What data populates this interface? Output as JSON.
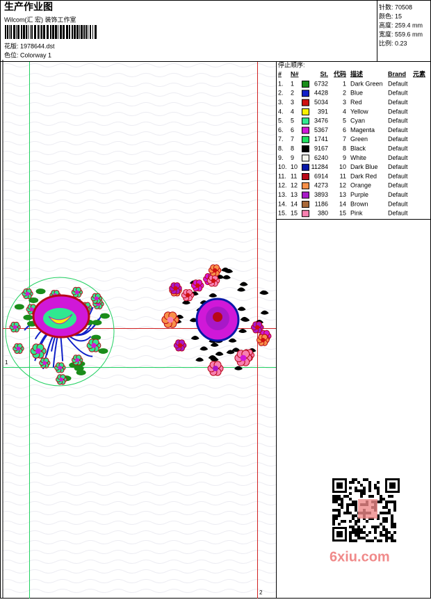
{
  "header": {
    "title": "生产作业图",
    "studio": "Wilcom(汇 宏) 装饰工作室",
    "design": "花版: 1978644.dst",
    "colorway": "色位: Colorway 1"
  },
  "info": {
    "stitches": "针数: 70508",
    "colors": "颜色: 15",
    "height": "高度: 259.4 mm",
    "width": "宽度: 559.6 mm",
    "scale": "比例: 0.23"
  },
  "stop_sequence": {
    "title": "停止顺序:",
    "columns": [
      "#",
      "N#",
      "St.",
      "代码",
      "描述",
      "Brand",
      "元素"
    ],
    "rows": [
      {
        "n": "1.",
        "nn": "1",
        "color": "#1a8c1a",
        "st": "6732",
        "code": "1",
        "desc": "Dark Green",
        "brand": "Default"
      },
      {
        "n": "2.",
        "nn": "2",
        "color": "#1020c8",
        "st": "4428",
        "code": "2",
        "desc": "Blue",
        "brand": "Default"
      },
      {
        "n": "3.",
        "nn": "3",
        "color": "#d01010",
        "st": "5034",
        "code": "3",
        "desc": "Red",
        "brand": "Default"
      },
      {
        "n": "4.",
        "nn": "4",
        "color": "#f8f000",
        "st": "391",
        "code": "4",
        "desc": "Yellow",
        "brand": "Default"
      },
      {
        "n": "5.",
        "nn": "5",
        "color": "#30e890",
        "st": "3476",
        "code": "5",
        "desc": "Cyan",
        "brand": "Default"
      },
      {
        "n": "6.",
        "nn": "6",
        "color": "#d018d8",
        "st": "5367",
        "code": "6",
        "desc": "Magenta",
        "brand": "Default"
      },
      {
        "n": "7.",
        "nn": "7",
        "color": "#20e060",
        "st": "1741",
        "code": "7",
        "desc": "Green",
        "brand": "Default"
      },
      {
        "n": "8.",
        "nn": "8",
        "color": "#000000",
        "st": "9167",
        "code": "8",
        "desc": "Black",
        "brand": "Default"
      },
      {
        "n": "9.",
        "nn": "9",
        "color": "#f4f4ec",
        "st": "6240",
        "code": "9",
        "desc": "White",
        "brand": "Default"
      },
      {
        "n": "10.",
        "nn": "10",
        "color": "#0818a8",
        "st": "11284",
        "code": "10",
        "desc": "Dark Blue",
        "brand": "Default"
      },
      {
        "n": "11.",
        "nn": "11",
        "color": "#b80818",
        "st": "6914",
        "code": "11",
        "desc": "Dark Red",
        "brand": "Default"
      },
      {
        "n": "12.",
        "nn": "12",
        "color": "#f89048",
        "st": "4273",
        "code": "12",
        "desc": "Orange",
        "brand": "Default"
      },
      {
        "n": "13.",
        "nn": "13",
        "color": "#a818c8",
        "st": "3893",
        "code": "13",
        "desc": "Purple",
        "brand": "Default"
      },
      {
        "n": "14.",
        "nn": "14",
        "color": "#a86838",
        "st": "1186",
        "code": "14",
        "desc": "Brown",
        "brand": "Default"
      },
      {
        "n": "15.",
        "nn": "15",
        "color": "#f880b0",
        "st": "380",
        "code": "15",
        "desc": "Pink",
        "brand": "Default"
      }
    ]
  },
  "canvas": {
    "start_mark": "1",
    "end_mark": "2"
  },
  "watermark": "6xiu.com"
}
